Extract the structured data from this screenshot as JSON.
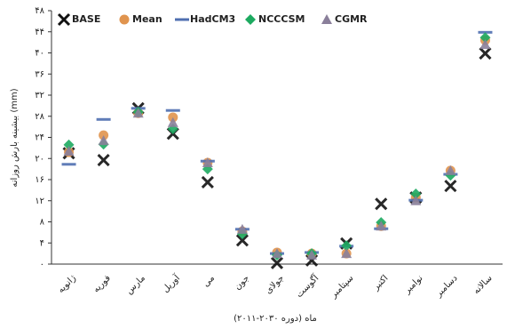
{
  "chart_data": {
    "type": "scatter",
    "ylabel": "بیشینه بارش روزانه (mm)",
    "xlabel": "ماه (دوره ۲۰۳۰-۲۰۱۱)",
    "categories": [
      "ژانویه",
      "فوریه",
      "مارس",
      "آوریل",
      "می",
      "جون",
      "جولای",
      "آگوست",
      "سپتامبر",
      "اکتبر",
      "نوامبر",
      "دسامبر",
      "سالانه"
    ],
    "series": [
      {
        "name": "BASE",
        "color": "#111111",
        "marker": "x",
        "values": [
          21,
          19.7,
          29.5,
          24.7,
          15.5,
          4.5,
          0.2,
          0.7,
          3.9,
          11.4,
          12.6,
          14.8,
          39.9
        ]
      },
      {
        "name": "Mean",
        "color": "#e0944e",
        "marker": "circle",
        "values": [
          21.2,
          24.4,
          28.6,
          27.8,
          19.2,
          6.2,
          2.2,
          2,
          2,
          7.2,
          12.6,
          17.7,
          42.4
        ]
      },
      {
        "name": "HadCM3",
        "color": "#4f6fb0",
        "marker": "dash",
        "values": [
          18.9,
          27.4,
          29.5,
          29.1,
          19.5,
          6.6,
          2,
          2.2,
          3.4,
          6.7,
          12.1,
          17,
          43.9
        ]
      },
      {
        "name": "NCCCSM",
        "color": "#1daa60",
        "marker": "diamond",
        "values": [
          22.6,
          22.7,
          28.8,
          25.6,
          18,
          5.7,
          1.7,
          2,
          3.5,
          7.9,
          13.3,
          16.8,
          42.9
        ]
      },
      {
        "name": "CGMR",
        "color": "#8a7f9a",
        "marker": "triangle",
        "values": [
          21.4,
          23.4,
          28.6,
          26.8,
          19.2,
          6.6,
          2,
          1.7,
          2,
          7.2,
          12,
          17.7,
          41.6
        ]
      }
    ],
    "ylim": [
      0,
      48
    ],
    "yticks": [
      {
        "value": 0,
        "label": "۰"
      },
      {
        "value": 4,
        "label": "۴"
      },
      {
        "value": 8,
        "label": "۸"
      },
      {
        "value": 12,
        "label": "۱۲"
      },
      {
        "value": 16,
        "label": "۱۶"
      },
      {
        "value": 20,
        "label": "۲۰"
      },
      {
        "value": 24,
        "label": "۲۴"
      },
      {
        "value": 28,
        "label": "۲۸"
      },
      {
        "value": 32,
        "label": "۳۲"
      },
      {
        "value": 36,
        "label": "۳۶"
      },
      {
        "value": 40,
        "label": "۴۰"
      },
      {
        "value": 44,
        "label": "۴۴"
      },
      {
        "value": 48,
        "label": "۴۸"
      }
    ],
    "grid": false,
    "legend": "top-left"
  }
}
